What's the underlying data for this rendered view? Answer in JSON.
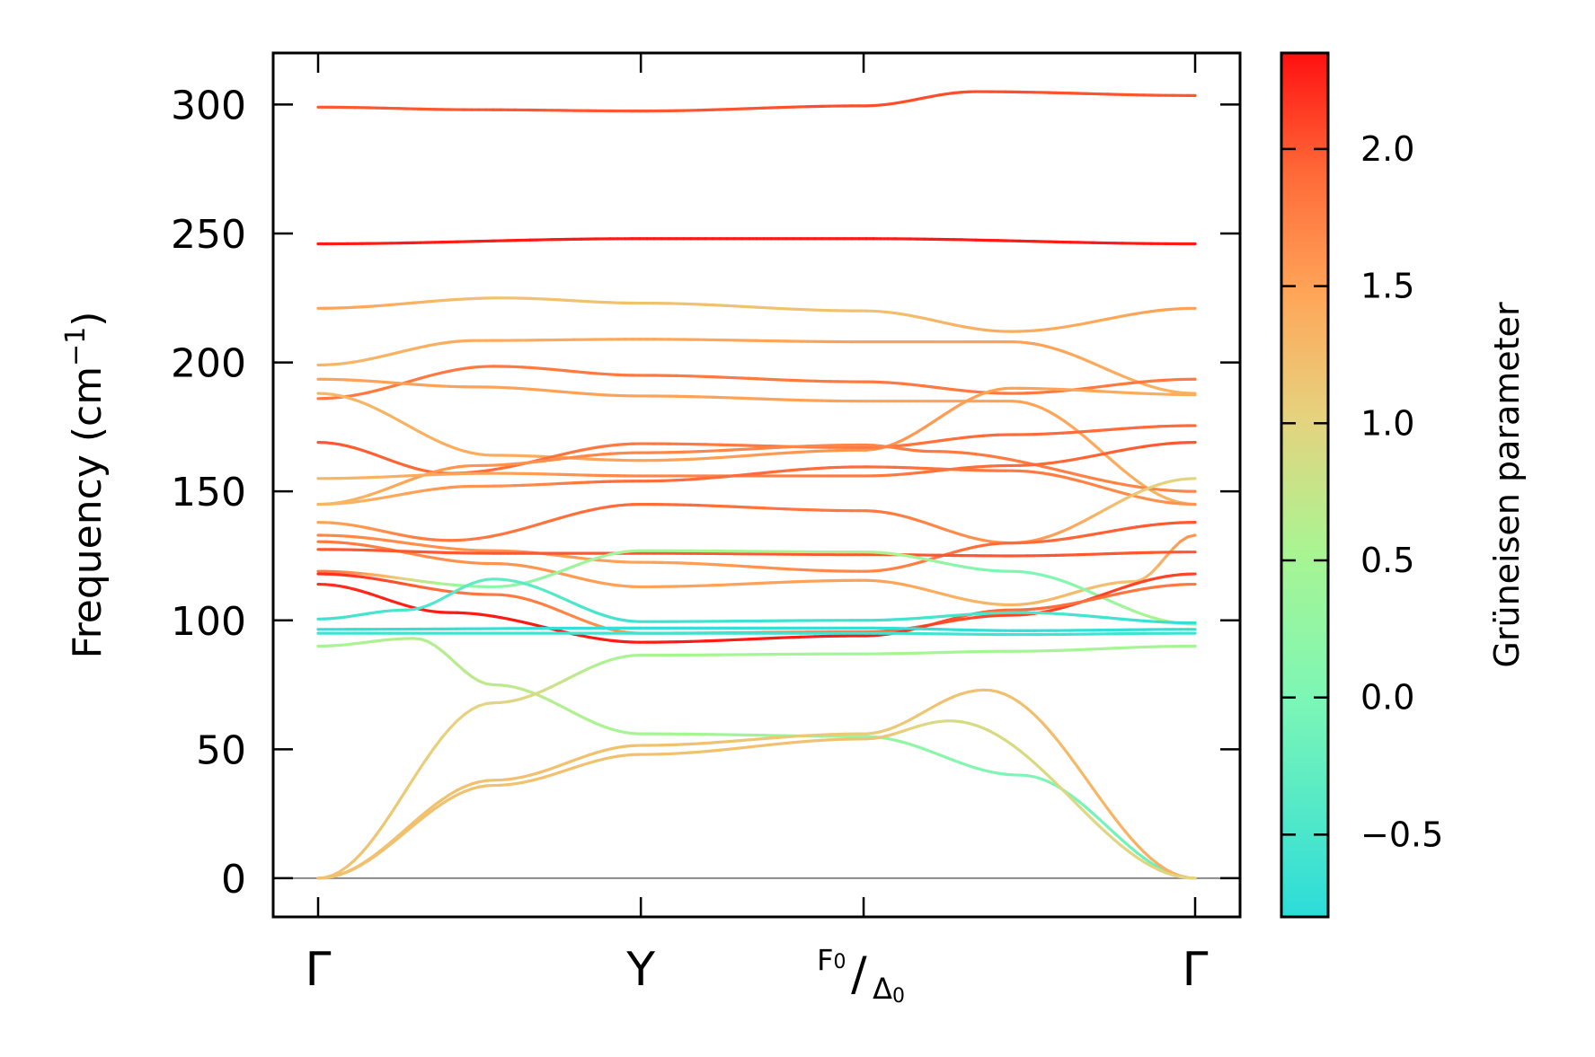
{
  "chart_data": {
    "type": "line",
    "title": "",
    "ylabel": "Frequency (cm",
    "ylabel_sup": "−1",
    "ylabel_close": ")",
    "ylim": [
      -15,
      320
    ],
    "yticks": [
      0,
      50,
      100,
      150,
      200,
      250,
      300
    ],
    "zero_line": 0,
    "kpoints": [
      {
        "label": "Γ",
        "pos": 0.0
      },
      {
        "label": "Y",
        "pos": 0.368
      },
      {
        "label": "F0/Δ0",
        "label_num": "F",
        "label_num_sub": "0",
        "label_den": "Δ",
        "label_den_sub": "0",
        "pos": 0.622
      },
      {
        "label": "Γ",
        "pos": 1.0
      }
    ],
    "colorbar": {
      "label": "Grüneisen parameter",
      "range": [
        -0.8,
        2.35
      ],
      "ticks": [
        -0.5,
        0.0,
        0.5,
        1.0,
        1.5,
        2.0
      ],
      "tick_labels": [
        "−0.5",
        "0.0",
        "0.5",
        "1.0",
        "1.5",
        "2.0"
      ],
      "colormap": "rainbow (upper half: cyan → green → yellow → orange → red)"
    },
    "series": [
      {
        "name": "band-1",
        "x": [
          0,
          0.18,
          0.368,
          0.622,
          0.75,
          1.0
        ],
        "y": [
          299,
          298,
          297.5,
          299.5,
          305,
          303.5
        ],
        "gamma": [
          2.0,
          2.0,
          2.0,
          2.05,
          2.05,
          2.0
        ]
      },
      {
        "name": "band-2",
        "x": [
          0,
          0.368,
          0.622,
          1.0
        ],
        "y": [
          246,
          248,
          248,
          246
        ],
        "gamma": [
          2.3,
          2.3,
          2.3,
          2.3
        ]
      },
      {
        "name": "band-3",
        "x": [
          0,
          0.21,
          0.368,
          0.622,
          0.79,
          1.0
        ],
        "y": [
          221,
          225,
          223,
          220,
          212,
          221
        ],
        "gamma": [
          1.5,
          1.2,
          1.2,
          1.2,
          1.4,
          1.5
        ]
      },
      {
        "name": "band-4",
        "x": [
          0,
          0.18,
          0.368,
          0.622,
          0.79,
          1.0
        ],
        "y": [
          199,
          208.5,
          209,
          208,
          208,
          188
        ],
        "gamma": [
          1.3,
          1.4,
          1.45,
          1.5,
          1.5,
          1.35
        ]
      },
      {
        "name": "band-5",
        "x": [
          0,
          0.2,
          0.368,
          0.622,
          0.79,
          1.0
        ],
        "y": [
          186,
          198.5,
          195,
          192.5,
          188,
          193.5
        ],
        "gamma": [
          1.8,
          1.8,
          1.8,
          1.8,
          1.8,
          1.8
        ]
      },
      {
        "name": "band-6",
        "x": [
          0,
          0.18,
          0.368,
          0.622,
          0.79,
          1.0
        ],
        "y": [
          193.5,
          190.5,
          187,
          185,
          185,
          145
        ],
        "gamma": [
          1.5,
          1.5,
          1.5,
          1.5,
          1.5,
          1.35
        ]
      },
      {
        "name": "band-7",
        "x": [
          0,
          0.2,
          0.368,
          0.622,
          0.79,
          1.0
        ],
        "y": [
          188,
          164,
          162,
          166,
          190,
          187.5
        ],
        "gamma": [
          1.3,
          1.4,
          1.5,
          1.6,
          1.5,
          1.4
        ]
      },
      {
        "name": "band-8",
        "x": [
          0,
          0.15,
          0.368,
          0.622,
          0.79,
          1.0
        ],
        "y": [
          169,
          157,
          168.5,
          167,
          172,
          175.5
        ],
        "gamma": [
          2.0,
          1.9,
          1.8,
          1.8,
          1.9,
          1.9
        ]
      },
      {
        "name": "band-9",
        "x": [
          0,
          0.18,
          0.368,
          0.622,
          0.7,
          1.0
        ],
        "y": [
          145,
          160,
          165,
          168,
          165.5,
          150
        ],
        "gamma": [
          1.3,
          1.6,
          1.7,
          1.7,
          1.8,
          1.7
        ]
      },
      {
        "name": "band-10",
        "x": [
          0,
          0.2,
          0.368,
          0.622,
          0.79,
          1.0
        ],
        "y": [
          155,
          157,
          156,
          156,
          160,
          169
        ],
        "gamma": [
          1.3,
          1.5,
          1.7,
          1.8,
          1.9,
          2.0
        ]
      },
      {
        "name": "band-11",
        "x": [
          0,
          0.18,
          0.368,
          0.622,
          0.79,
          1.0
        ],
        "y": [
          145,
          152,
          154,
          159.5,
          158,
          145
        ],
        "gamma": [
          1.3,
          1.6,
          1.9,
          1.9,
          1.8,
          1.6
        ]
      },
      {
        "name": "band-12",
        "x": [
          0,
          0.15,
          0.368,
          0.622,
          0.79,
          1.0
        ],
        "y": [
          138,
          131,
          145,
          142.5,
          130,
          155
        ],
        "gamma": [
          1.5,
          1.8,
          1.9,
          1.8,
          1.6,
          1.0
        ]
      },
      {
        "name": "band-13",
        "x": [
          0,
          0.2,
          0.368,
          0.622,
          0.79,
          1.0
        ],
        "y": [
          133,
          127,
          122.5,
          119,
          130,
          138
        ],
        "gamma": [
          1.7,
          1.6,
          1.5,
          1.7,
          1.9,
          2.0
        ]
      },
      {
        "name": "band-14",
        "x": [
          0,
          0.2,
          0.368,
          0.622,
          0.79,
          0.93,
          1.0
        ],
        "y": [
          130.5,
          122,
          113,
          115.5,
          106,
          115,
          133
        ],
        "gamma": [
          1.8,
          1.6,
          1.5,
          1.5,
          1.3,
          1.2,
          1.6
        ]
      },
      {
        "name": "band-15",
        "x": [
          0,
          0.2,
          0.368,
          0.622,
          0.79,
          1.0
        ],
        "y": [
          127.5,
          126,
          126,
          125.5,
          125,
          126.5
        ],
        "gamma": [
          2.0,
          2.0,
          2.0,
          2.0,
          2.0,
          2.0
        ]
      },
      {
        "name": "band-16",
        "x": [
          0,
          0.2,
          0.368,
          0.622,
          0.79,
          1.0
        ],
        "y": [
          119,
          113,
          127,
          126.5,
          119,
          98.5
        ],
        "gamma": [
          1.8,
          0.2,
          0.5,
          0.6,
          0.0,
          0.6
        ]
      },
      {
        "name": "band-17",
        "x": [
          0,
          0.2,
          0.368,
          0.622,
          0.79,
          1.0
        ],
        "y": [
          118,
          110,
          95,
          95.5,
          102,
          118
        ],
        "gamma": [
          2.2,
          1.8,
          1.6,
          1.9,
          2.1,
          2.1
        ]
      },
      {
        "name": "band-18",
        "x": [
          0,
          0.15,
          0.368,
          0.622,
          0.79,
          1.0
        ],
        "y": [
          114,
          103,
          91.5,
          94,
          104,
          114
        ],
        "gamma": [
          2.2,
          2.3,
          2.3,
          2.3,
          1.9,
          1.8
        ]
      },
      {
        "name": "band-19",
        "x": [
          0,
          0.1,
          0.2,
          0.368,
          0.622,
          0.8,
          1.0
        ],
        "y": [
          100.5,
          104,
          116,
          99.5,
          100,
          103,
          99
        ],
        "gamma": [
          -0.6,
          -0.5,
          -0.3,
          -0.6,
          -0.6,
          -0.5,
          -0.7
        ]
      },
      {
        "name": "band-20",
        "x": [
          0,
          0.368,
          0.622,
          0.8,
          1.0
        ],
        "y": [
          96.5,
          97,
          97,
          96,
          96.5
        ],
        "gamma": [
          -0.7,
          -0.7,
          -0.7,
          -0.7,
          -0.7
        ]
      },
      {
        "name": "band-21",
        "x": [
          0,
          0.368,
          0.622,
          0.8,
          1.0
        ],
        "y": [
          95,
          95,
          95,
          94.5,
          95
        ],
        "gamma": [
          -0.6,
          -0.6,
          -0.6,
          -0.6,
          -0.6
        ]
      },
      {
        "name": "band-22",
        "x": [
          0,
          0.11,
          0.2,
          0.368,
          0.622,
          0.8,
          1.0
        ],
        "y": [
          90,
          93,
          75,
          56,
          55,
          40,
          0
        ],
        "gamma": [
          0.5,
          0.6,
          0.7,
          0.5,
          0.3,
          0.0,
          -0.2
        ]
      },
      {
        "name": "band-23",
        "x": [
          0,
          0.2,
          0.368,
          0.622,
          0.79,
          1.0
        ],
        "y": [
          0,
          68,
          86.5,
          87,
          88,
          90
        ],
        "gamma": [
          1.2,
          1.0,
          0.5,
          0.5,
          0.5,
          0.5
        ]
      },
      {
        "name": "band-24",
        "x": [
          0,
          0.2,
          0.368,
          0.622,
          0.76,
          1.0
        ],
        "y": [
          0,
          38,
          51.5,
          56,
          73,
          0
        ],
        "gamma": [
          1.2,
          1.2,
          1.2,
          1.1,
          1.2,
          1.4
        ]
      },
      {
        "name": "band-25",
        "x": [
          0,
          0.2,
          0.368,
          0.622,
          0.72,
          1.0
        ],
        "y": [
          0,
          36,
          48,
          54,
          61,
          0
        ],
        "gamma": [
          1.2,
          1.2,
          1.2,
          1.2,
          0.9,
          1.0
        ]
      }
    ]
  }
}
